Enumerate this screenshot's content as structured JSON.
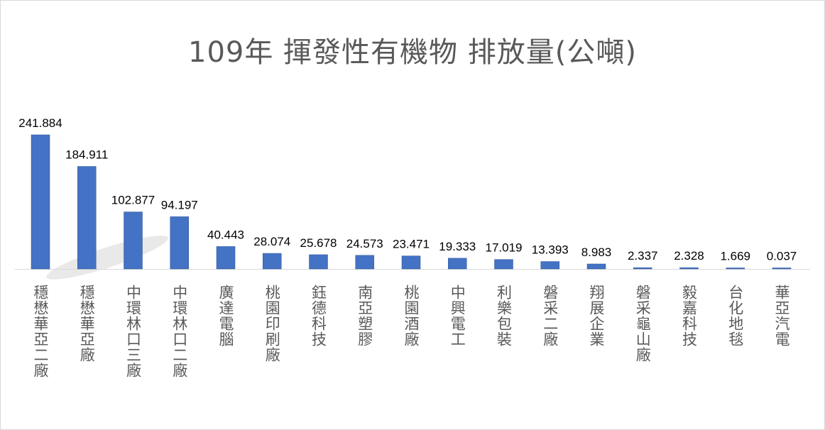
{
  "chart_data": {
    "type": "bar",
    "title": "109年 揮發性有機物 排放量(公噸)",
    "categories": [
      "穩懋華亞二廠",
      "穩懋華亞廠",
      "中環林口三廠",
      "中環林口二廠",
      "廣達電腦",
      "桃園印刷廠",
      "鈺德科技",
      "南亞塑膠",
      "桃園酒廠",
      "中興電工",
      "利樂包裝",
      "磐采二廠",
      "翔展企業",
      "磐采龜山廠",
      "毅嘉科技",
      "台化地毯",
      "華亞汽電"
    ],
    "values": [
      241.884,
      184.911,
      102.877,
      94.197,
      40.443,
      28.074,
      25.678,
      24.573,
      23.471,
      19.333,
      17.019,
      13.393,
      8.983,
      2.337,
      2.328,
      1.669,
      0.037
    ],
    "value_labels": [
      "241.884",
      "184.911",
      "102.877",
      "94.197",
      "40.443",
      "28.074",
      "25.678",
      "24.573",
      "23.471",
      "19.333",
      "17.019",
      "13.393",
      "8.983",
      "2.337",
      "2.328",
      "1.669",
      "0.037"
    ],
    "ylim": [
      0,
      241.884
    ],
    "grid": false,
    "legend": "none",
    "bar_color": "#4472c4"
  }
}
